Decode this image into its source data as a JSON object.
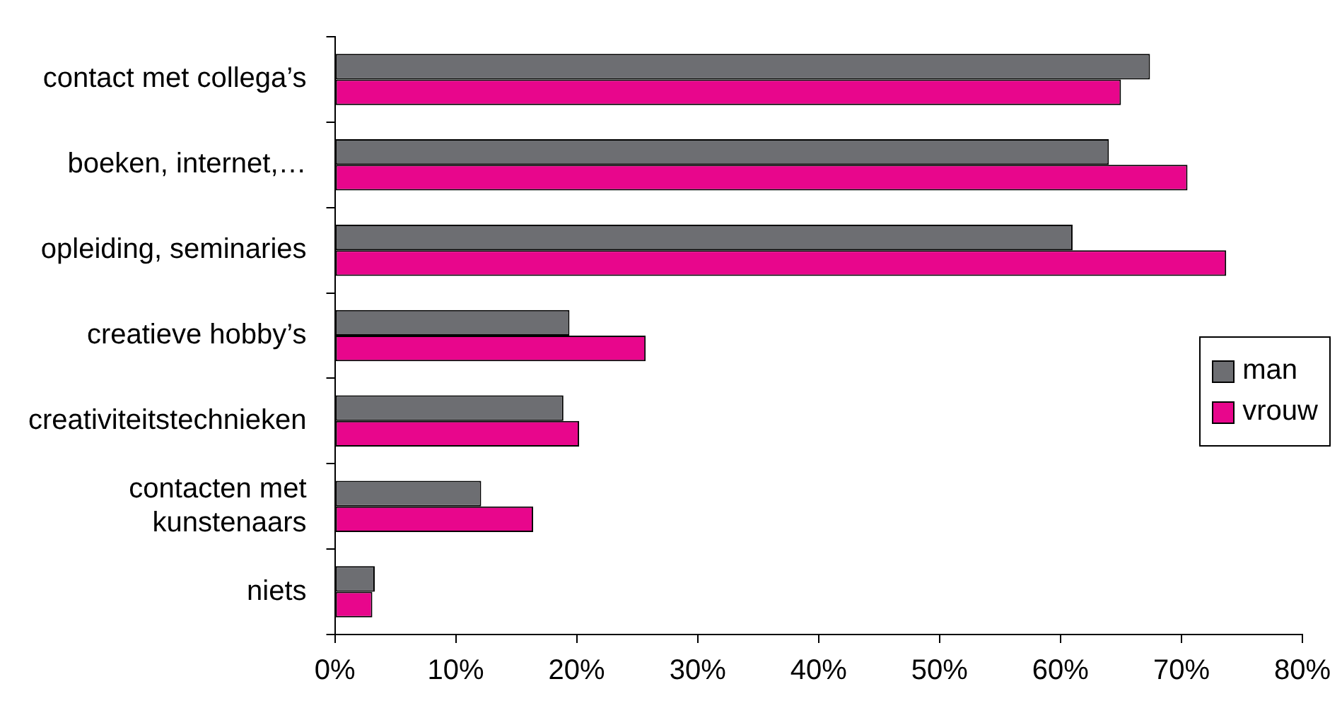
{
  "chart_data": {
    "type": "bar",
    "orientation": "horizontal",
    "categories": [
      "contact met collega’s",
      "boeken, internet,…",
      "opleiding, seminaries",
      "creatieve hobby’s",
      "creativiteitstechnieken",
      "contacten met kunstenaars",
      "niets"
    ],
    "series": [
      {
        "name": "man",
        "color": "#6d6e72",
        "values": [
          67.4,
          64,
          61,
          19.4,
          18.9,
          12.1,
          3.3
        ]
      },
      {
        "name": "vrouw",
        "color": "#e8068c",
        "values": [
          65,
          70.5,
          73.7,
          25.7,
          20.2,
          16.4,
          3.1
        ]
      }
    ],
    "xlim": [
      0,
      80
    ],
    "xticks": [
      {
        "value": 0,
        "label": "0%"
      },
      {
        "value": 10,
        "label": "10%"
      },
      {
        "value": 20,
        "label": "20%"
      },
      {
        "value": 30,
        "label": "30%"
      },
      {
        "value": 40,
        "label": "40%"
      },
      {
        "value": 50,
        "label": "50%"
      },
      {
        "value": 60,
        "label": "60%"
      },
      {
        "value": 70,
        "label": "70%"
      },
      {
        "value": 80,
        "label": "80%"
      }
    ],
    "grid": false,
    "legend": "right"
  }
}
